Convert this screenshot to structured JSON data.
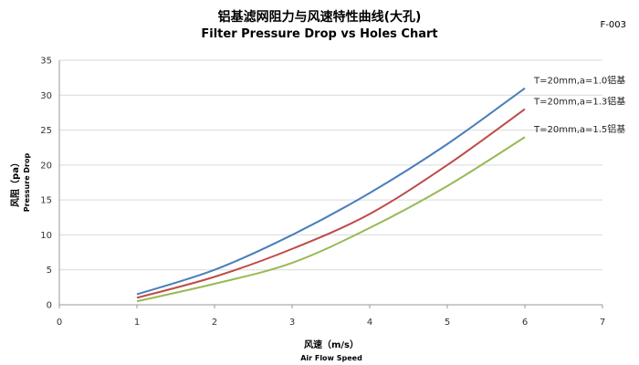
{
  "chart_data": {
    "type": "line",
    "title": "铝基滤网阻力与风速特性曲线(大孔)",
    "subtitle": "Filter Pressure Drop vs Holes Chart",
    "code": "F-003",
    "xlabel": "风速（m/s）",
    "xlabel_en": "Air Flow Speed",
    "ylabel": "风阻（pa）",
    "ylabel_en": "Pressure Drop",
    "xlim": [
      0,
      7
    ],
    "ylim": [
      0,
      35
    ],
    "xticks": [
      0,
      1,
      2,
      3,
      4,
      5,
      6,
      7
    ],
    "yticks": [
      0,
      5,
      10,
      15,
      20,
      25,
      30,
      35
    ],
    "grid": "horizontal",
    "x": [
      1,
      2,
      3,
      4,
      5,
      6
    ],
    "series": [
      {
        "name": "T=20mm,a=1.0铝基",
        "color": "#4a7ebb",
        "values": [
          1.5,
          5,
          10,
          16,
          23,
          31
        ]
      },
      {
        "name": "T=20mm,a=1.3铝基",
        "color": "#be4b48",
        "values": [
          1,
          4,
          8,
          13,
          20,
          28
        ]
      },
      {
        "name": "T=20mm,a=1.5铝基",
        "color": "#98b954",
        "values": [
          0.5,
          3,
          6,
          11,
          17,
          24
        ]
      }
    ]
  }
}
